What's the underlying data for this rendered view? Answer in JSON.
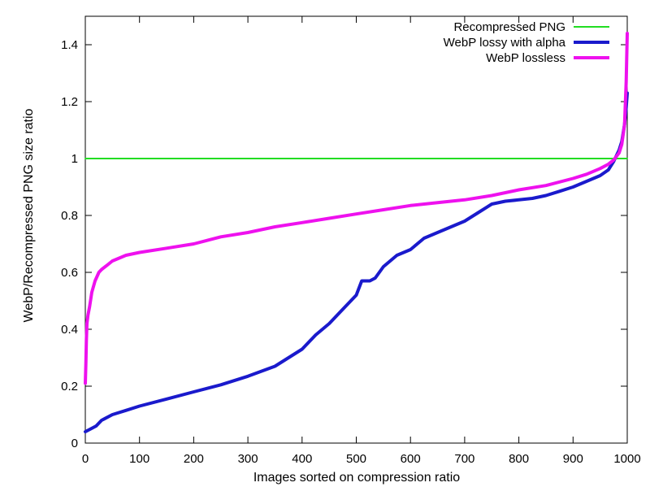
{
  "chart_data": {
    "type": "line",
    "title": "",
    "xlabel": "Images sorted on compression ratio",
    "ylabel": "WebP/Recompressed PNG size ratio",
    "xlim": [
      0,
      1000
    ],
    "ylim": [
      0,
      1.5
    ],
    "x_ticks": [
      0,
      100,
      200,
      300,
      400,
      500,
      600,
      700,
      800,
      900,
      1000
    ],
    "x_tick_labels": [
      "0",
      "100",
      "200",
      "300",
      "400",
      "500",
      "600",
      "700",
      "800",
      "900",
      "1000"
    ],
    "y_ticks": [
      0,
      0.2,
      0.4,
      0.6,
      0.8,
      1.0,
      1.2,
      1.4
    ],
    "y_tick_labels": [
      "0",
      "0.2",
      "0.4",
      "0.6",
      "0.8",
      "1",
      "1.2",
      "1.4"
    ],
    "grid": false,
    "legend_position": "top-right",
    "series": [
      {
        "name": "Recompressed PNG",
        "color": "#22dd22",
        "x": [
          0,
          1000
        ],
        "y": [
          1.0,
          1.0
        ]
      },
      {
        "name": "WebP lossy with alpha",
        "color": "#1a1acc",
        "x": [
          0,
          10,
          20,
          30,
          50,
          75,
          100,
          150,
          200,
          250,
          300,
          350,
          400,
          425,
          450,
          475,
          500,
          510,
          525,
          535,
          550,
          575,
          600,
          625,
          650,
          675,
          700,
          725,
          750,
          775,
          800,
          825,
          850,
          875,
          900,
          925,
          950,
          965,
          975,
          985,
          990,
          995,
          998,
          1000
        ],
        "y": [
          0.04,
          0.05,
          0.06,
          0.08,
          0.1,
          0.115,
          0.13,
          0.155,
          0.18,
          0.205,
          0.235,
          0.27,
          0.33,
          0.38,
          0.42,
          0.47,
          0.52,
          0.57,
          0.57,
          0.58,
          0.62,
          0.66,
          0.68,
          0.72,
          0.74,
          0.76,
          0.78,
          0.81,
          0.84,
          0.85,
          0.855,
          0.86,
          0.87,
          0.885,
          0.9,
          0.92,
          0.94,
          0.96,
          0.99,
          1.03,
          1.06,
          1.12,
          1.18,
          1.23
        ]
      },
      {
        "name": "WebP lossless",
        "color": "#ee11ee",
        "x": [
          0,
          1,
          2,
          3,
          5,
          8,
          12,
          18,
          25,
          30,
          40,
          50,
          75,
          100,
          150,
          200,
          250,
          300,
          350,
          400,
          450,
          500,
          550,
          600,
          650,
          700,
          750,
          800,
          850,
          900,
          925,
          950,
          965,
          975,
          985,
          990,
          995,
          998,
          1000
        ],
        "y": [
          0.21,
          0.28,
          0.36,
          0.42,
          0.45,
          0.48,
          0.53,
          0.57,
          0.6,
          0.61,
          0.625,
          0.64,
          0.66,
          0.67,
          0.685,
          0.7,
          0.725,
          0.74,
          0.76,
          0.775,
          0.79,
          0.805,
          0.82,
          0.835,
          0.845,
          0.855,
          0.87,
          0.89,
          0.905,
          0.93,
          0.945,
          0.965,
          0.98,
          0.995,
          1.02,
          1.05,
          1.12,
          1.27,
          1.44
        ]
      }
    ]
  }
}
